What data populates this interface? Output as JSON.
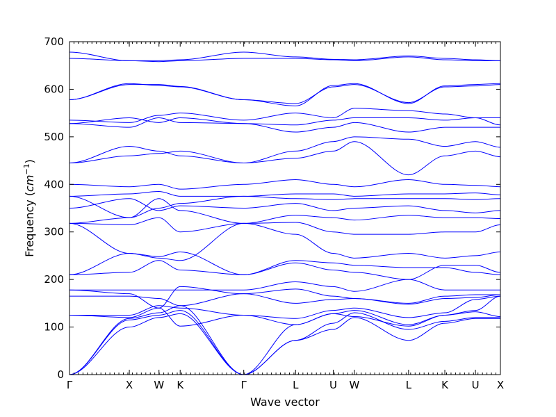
{
  "chart_data": {
    "type": "line",
    "title": "",
    "xlabel": "Wave vector",
    "ylabel_text": "Frequency (",
    "ylabel_unit": "cm",
    "ylabel_exp": "−1",
    "ylabel_close": ")",
    "ylim": [
      0,
      700
    ],
    "xlim": [
      0,
      9.15
    ],
    "grid": false,
    "legend": "none",
    "line_color": "#0000ff",
    "yticks": [
      0,
      100,
      200,
      300,
      400,
      500,
      600,
      700
    ],
    "high_symmetry_points": [
      {
        "label": "Γ",
        "x": 0
      },
      {
        "label": "X",
        "x": 1.27
      },
      {
        "label": "W",
        "x": 1.9
      },
      {
        "label": "K",
        "x": 2.35
      },
      {
        "label": "Γ",
        "x": 3.7
      },
      {
        "label": "L",
        "x": 4.8
      },
      {
        "label": "U",
        "x": 5.6
      },
      {
        "label": "W",
        "x": 6.05
      },
      {
        "label": "L",
        "x": 7.2
      },
      {
        "label": "K",
        "x": 7.97
      },
      {
        "label": "U",
        "x": 8.62
      },
      {
        "label": "X",
        "x": 9.15
      }
    ],
    "series": [
      {
        "values": [
          0,
          100,
          120,
          128,
          0,
          72,
          95,
          120,
          72,
          108,
          118,
          118
        ]
      },
      {
        "values": [
          0,
          115,
          125,
          135,
          0,
          72,
          108,
          130,
          95,
          112,
          120,
          120
        ]
      },
      {
        "values": [
          0,
          118,
          130,
          145,
          0,
          105,
          128,
          135,
          105,
          125,
          132,
          122
        ]
      },
      {
        "values": [
          125,
          120,
          140,
          102,
          125,
          105,
          128,
          122,
          102,
          125,
          135,
          165
        ]
      },
      {
        "values": [
          125,
          125,
          145,
          140,
          125,
          118,
          135,
          140,
          120,
          130,
          158,
          165
        ]
      },
      {
        "values": [
          165,
          165,
          160,
          145,
          170,
          150,
          158,
          160,
          148,
          160,
          162,
          168
        ]
      },
      {
        "values": [
          178,
          170,
          140,
          185,
          170,
          180,
          165,
          160,
          150,
          165,
          168,
          168
        ]
      },
      {
        "values": [
          178,
          178,
          178,
          178,
          178,
          195,
          185,
          175,
          200,
          178,
          178,
          178
        ]
      },
      {
        "values": [
          210,
          215,
          240,
          220,
          210,
          235,
          220,
          215,
          200,
          230,
          230,
          215
        ]
      },
      {
        "values": [
          210,
          255,
          248,
          258,
          210,
          240,
          235,
          230,
          225,
          225,
          215,
          210
        ]
      },
      {
        "values": [
          318,
          255,
          245,
          240,
          318,
          295,
          255,
          245,
          255,
          245,
          250,
          258
        ]
      },
      {
        "values": [
          318,
          315,
          330,
          300,
          318,
          320,
          300,
          295,
          295,
          300,
          300,
          315
        ]
      },
      {
        "values": [
          318,
          330,
          370,
          345,
          318,
          335,
          330,
          325,
          335,
          330,
          330,
          328
        ]
      },
      {
        "values": [
          350,
          370,
          345,
          355,
          350,
          360,
          345,
          350,
          355,
          345,
          340,
          345
        ]
      },
      {
        "values": [
          375,
          330,
          350,
          360,
          375,
          370,
          368,
          370,
          370,
          370,
          368,
          370
        ]
      },
      {
        "values": [
          375,
          380,
          385,
          375,
          375,
          380,
          380,
          375,
          380,
          380,
          382,
          378
        ]
      },
      {
        "values": [
          400,
          395,
          400,
          390,
          400,
          410,
          400,
          395,
          410,
          400,
          398,
          395
        ]
      },
      {
        "values": [
          445,
          460,
          465,
          470,
          445,
          455,
          470,
          490,
          420,
          460,
          470,
          458
        ]
      },
      {
        "values": [
          445,
          480,
          470,
          460,
          445,
          470,
          490,
          500,
          495,
          480,
          490,
          478
        ]
      },
      {
        "values": [
          528,
          520,
          540,
          530,
          528,
          510,
          520,
          530,
          510,
          520,
          520,
          520
        ]
      },
      {
        "values": [
          528,
          540,
          530,
          540,
          528,
          525,
          535,
          540,
          540,
          535,
          540,
          525
        ]
      },
      {
        "values": [
          535,
          530,
          545,
          550,
          535,
          550,
          540,
          560,
          555,
          548,
          540,
          540
        ]
      },
      {
        "values": [
          578,
          610,
          610,
          606,
          578,
          570,
          605,
          610,
          572,
          605,
          607,
          610
        ]
      },
      {
        "values": [
          578,
          612,
          608,
          605,
          578,
          565,
          608,
          612,
          570,
          607,
          610,
          612
        ]
      },
      {
        "values": [
          665,
          660,
          658,
          660,
          665,
          665,
          662,
          660,
          668,
          662,
          660,
          660
        ]
      },
      {
        "values": [
          678,
          660,
          660,
          662,
          678,
          668,
          663,
          662,
          670,
          665,
          662,
          660
        ]
      }
    ]
  }
}
